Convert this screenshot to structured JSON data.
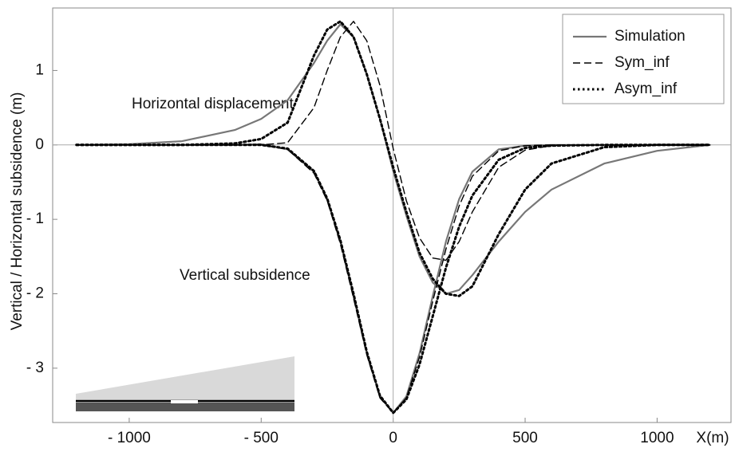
{
  "chart_data": {
    "type": "line",
    "x_label": "X(m)",
    "y_label": "Vertical / Horizontal  subsidence  (m)",
    "annotations": [
      "Horizontal displacement",
      "Vertical subsidence"
    ],
    "x": [
      -1200,
      -1000,
      -800,
      -600,
      -500,
      -400,
      -300,
      -250,
      -200,
      -150,
      -100,
      -50,
      0,
      50,
      100,
      150,
      200,
      250,
      300,
      400,
      500,
      600,
      800,
      1000,
      1200
    ],
    "series": [
      {
        "name": "Simulation",
        "color": "#777777",
        "dash": "solid",
        "horizontal": [
          0,
          0.01,
          0.05,
          0.2,
          0.35,
          0.6,
          1.1,
          1.4,
          1.62,
          1.45,
          0.95,
          0.35,
          -0.35,
          -0.95,
          -1.5,
          -1.85,
          -2.0,
          -1.95,
          -1.75,
          -1.3,
          -0.9,
          -0.6,
          -0.25,
          -0.08,
          0
        ],
        "vertical": [
          0,
          0,
          0,
          0,
          0.01,
          -0.06,
          -0.36,
          -0.73,
          -1.3,
          -2.03,
          -2.8,
          -3.38,
          -3.6,
          -3.38,
          -2.8,
          -2.03,
          -1.3,
          -0.73,
          -0.36,
          -0.06,
          -0.01,
          0,
          0,
          0,
          0
        ]
      },
      {
        "name": "Sym_inf",
        "color": "#000000",
        "dash": "dashed",
        "horizontal": [
          0,
          0,
          0,
          0,
          0,
          0.03,
          0.5,
          1.0,
          1.45,
          1.66,
          1.4,
          0.8,
          -0.05,
          -0.75,
          -1.25,
          -1.52,
          -1.55,
          -1.3,
          -0.9,
          -0.3,
          -0.07,
          -0.01,
          0,
          0,
          0
        ],
        "vertical": [
          0,
          0,
          0,
          0,
          0,
          -0.06,
          -0.38,
          -0.75,
          -1.33,
          -2.06,
          -2.82,
          -3.4,
          -3.6,
          -3.4,
          -2.85,
          -2.1,
          -1.4,
          -0.82,
          -0.42,
          -0.08,
          -0.01,
          0,
          0,
          0,
          0
        ]
      },
      {
        "name": "Asym_inf",
        "color": "#000000",
        "dash": "dotted",
        "horizontal": [
          0,
          0,
          0,
          0.02,
          0.08,
          0.3,
          1.2,
          1.55,
          1.66,
          1.45,
          0.95,
          0.35,
          -0.3,
          -0.9,
          -1.45,
          -1.8,
          -2.0,
          -2.03,
          -1.9,
          -1.2,
          -0.6,
          -0.25,
          -0.03,
          0,
          0
        ],
        "vertical": [
          0,
          0,
          0,
          0,
          0,
          -0.05,
          -0.35,
          -0.72,
          -1.28,
          -2.0,
          -2.78,
          -3.37,
          -3.6,
          -3.42,
          -2.95,
          -2.3,
          -1.65,
          -1.1,
          -0.68,
          -0.2,
          -0.04,
          -0.01,
          0,
          0,
          0
        ]
      }
    ],
    "xlim": [
      -1290,
      1280
    ],
    "ylim": [
      -3.73,
      1.84
    ],
    "xticks": [
      {
        "value": -1000,
        "label": "- 1000"
      },
      {
        "value": -500,
        "label": "- 500"
      },
      0,
      500,
      1000
    ],
    "yticks": [
      {
        "value": -3,
        "label": "- 3"
      },
      {
        "value": -2,
        "label": "- 2"
      },
      {
        "value": -1,
        "label": "- 1"
      },
      0,
      1
    ],
    "legend": "upper right",
    "zero_lines": true
  }
}
